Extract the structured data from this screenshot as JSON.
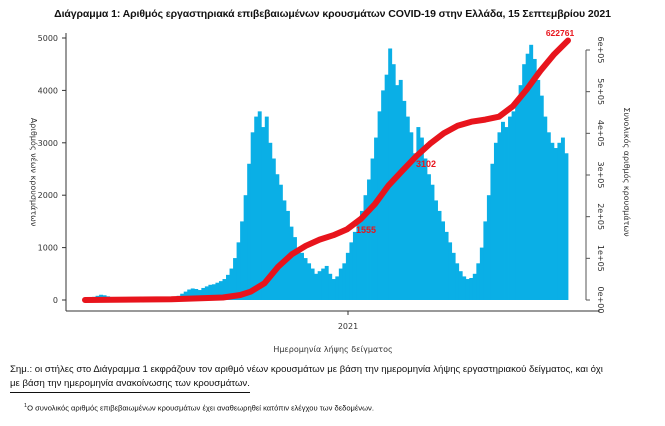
{
  "title": "Διάγραμμα 1: Αριθμός εργαστηριακά επιβεβαιωμένων κρουσμάτων COVID-19 στην Ελλάδα, 15 Σεπτεμβρίου 2021",
  "note_line1": "Σημ.: οι στήλες στο Διάγραμμα 1 εκφράζουν τον αριθμό νέων κρουσμάτων με βάση την ημερομηνία λήψης εργαστηριακού δείγματος, και όχι",
  "note_line2": "με βάση την ημερομηνία ανακοίνωσης των κρουσμάτων.",
  "footnote_mark": "1",
  "footnote": "Ο συνολικός αριθμός επιβεβαιωμένων κρουσμάτων έχει αναθεωρηθεί κατόπιν ελέγχου των δεδομένων.",
  "colors": {
    "bars": "#0AAFE6",
    "cumulative": "#E8141C",
    "axis": "#333333"
  },
  "chart_data": {
    "type": "bar",
    "title": "Διάγραμμα 1: Αριθμός εργαστηριακά επιβεβαιωμένων κρουσμάτων COVID-19 στην Ελλάδα, 15 Σεπτεμβρίου 2021",
    "xlabel": "Ημερομηνία λήψης δείγματος",
    "ylabel": "Αριθμός νέων κρουσμάτων",
    "y2label": "Συνολικός αριθμός κρουσμάτων",
    "x_ticks": [
      "2021"
    ],
    "y_ticks": [
      "0",
      "1000",
      "2000",
      "3000",
      "4000",
      "5000"
    ],
    "y2_ticks": [
      "0e+00",
      "1e+05",
      "2e+05",
      "3e+05",
      "4e+05",
      "5e+05",
      "6e+05"
    ],
    "ylim": [
      0,
      5000
    ],
    "y2lim": [
      0,
      600000
    ],
    "series": [
      {
        "name": "Νέα κρούσματα",
        "type": "bar",
        "values": [
          20,
          40,
          60,
          80,
          100,
          90,
          70,
          50,
          40,
          30,
          20,
          20,
          20,
          25,
          25,
          30,
          25,
          30,
          30,
          35,
          40,
          40,
          45,
          50,
          55,
          60,
          80,
          120,
          160,
          200,
          220,
          210,
          190,
          230,
          260,
          290,
          300,
          330,
          360,
          400,
          480,
          600,
          800,
          1100,
          1500,
          2000,
          2600,
          3200,
          3500,
          3600,
          3300,
          3500,
          3000,
          2700,
          2400,
          2200,
          1900,
          1700,
          1400,
          1200,
          1000,
          900,
          800,
          700,
          600,
          500,
          550,
          600,
          650,
          500,
          400,
          450,
          600,
          700,
          900,
          1100,
          1300,
          1500,
          1700,
          2000,
          2300,
          2700,
          3100,
          3600,
          4000,
          4300,
          4800,
          4500,
          4100,
          4200,
          3800,
          3500,
          3200,
          2800,
          3300,
          3100,
          2700,
          2400,
          2200,
          1900,
          1700,
          1500,
          1300,
          1100,
          900,
          700,
          550,
          450,
          400,
          420,
          500,
          700,
          1000,
          1500,
          2000,
          2600,
          3000,
          3200,
          3400,
          3300,
          3500,
          3600,
          3800,
          4100,
          4500,
          4700,
          4870,
          4600,
          4200,
          3900,
          3500,
          3200,
          3000,
          2900,
          3000,
          3100,
          2800
        ],
        "labels": {
          "1555": "1555",
          "3102": "3102"
        }
      },
      {
        "name": "Συνολικός αριθμός κρουσμάτων",
        "type": "line",
        "points": [
          [
            0,
            0
          ],
          [
            25,
            2000
          ],
          [
            40,
            6000
          ],
          [
            45,
            12000
          ],
          [
            48,
            20000
          ],
          [
            52,
            40000
          ],
          [
            56,
            80000
          ],
          [
            60,
            110000
          ],
          [
            64,
            130000
          ],
          [
            68,
            145000
          ],
          [
            72,
            155510
          ],
          [
            76,
            170000
          ],
          [
            80,
            195000
          ],
          [
            84,
            230000
          ],
          [
            88,
            275000
          ],
          [
            92,
            310217
          ],
          [
            96,
            345000
          ],
          [
            100,
            375000
          ],
          [
            104,
            400000
          ],
          [
            108,
            418000
          ],
          [
            112,
            428000
          ],
          [
            116,
            433000
          ],
          [
            120,
            440000
          ],
          [
            124,
            465000
          ],
          [
            128,
            505000
          ],
          [
            132,
            550000
          ],
          [
            136,
            590000
          ],
          [
            140,
            622761
          ]
        ]
      }
    ],
    "annotations": [
      "1555",
      "3102",
      "622761"
    ]
  }
}
